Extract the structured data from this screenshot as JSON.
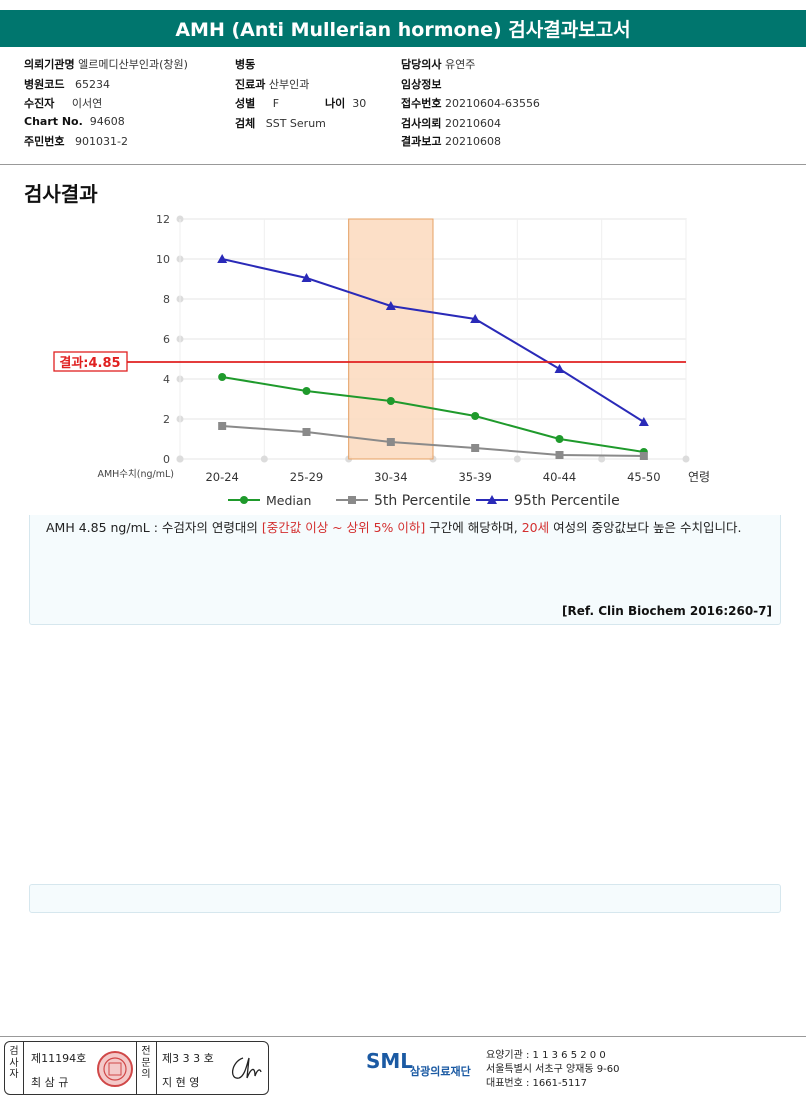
{
  "header": {
    "title": "AMH (Anti Mullerian hormone) 검사결과보고서"
  },
  "info": {
    "institution_label": "의뢰기관명",
    "institution": "엘르메디산부인과(창원)",
    "ward_label": "병동",
    "ward": "",
    "doctor_label": "담당의사",
    "doctor": "유연주",
    "hospital_code_label": "병원코드",
    "hospital_code": "65234",
    "dept_label": "진료과",
    "dept": "산부인과",
    "clinical_label": "임상정보",
    "clinical": "",
    "patient_label": "수진자",
    "patient": "이서연",
    "sex_label": "성별",
    "sex": "F",
    "age_label": "나이",
    "age": "30",
    "receipt_label": "접수번호",
    "receipt": "20210604-63556",
    "chart_label": "Chart No.",
    "chart": "94608",
    "specimen_label": "검체",
    "specimen": "SST Serum",
    "request_label": "검사의뢰",
    "request": "20210604",
    "id_label": "주민번호",
    "id": "901031-2",
    "report_label": "결과보고",
    "report": "20210608"
  },
  "section": {
    "title": "검사결과"
  },
  "chart_data": {
    "type": "line",
    "categories": [
      "20-24",
      "25-29",
      "30-34",
      "35-39",
      "40-44",
      "45-50"
    ],
    "xlabel": "연령",
    "ylabel": "AMH수치(ng/mL)",
    "ylim": [
      0,
      12
    ],
    "yticks": [
      0,
      2,
      4,
      6,
      8,
      10,
      12
    ],
    "highlight_category": "30-34",
    "result_line": {
      "value": 4.85,
      "label": "결과:4.85",
      "color": "#e02020"
    },
    "series": [
      {
        "name": "Median",
        "values": [
          4.1,
          3.4,
          2.9,
          2.15,
          1.0,
          0.35
        ],
        "color": "#1f9a2c",
        "marker": "circle"
      },
      {
        "name": "5th Percentile",
        "values": [
          1.65,
          1.35,
          0.85,
          0.55,
          0.2,
          0.15
        ],
        "color": "#8a8a8a",
        "marker": "square"
      },
      {
        "name": "95th Percentile",
        "values": [
          10.0,
          9.05,
          7.65,
          7.0,
          4.5,
          1.85
        ],
        "color": "#2a2ab8",
        "marker": "triangle"
      }
    ],
    "legend_position": "bottom",
    "grid": true
  },
  "description": {
    "p1": "AMH  4.85 ng/mL : 수검자의 연령대의 ",
    "p2": "[중간값 이상 ~ 상위 5% 이하]",
    "p3": "  구간에 해당하며, ",
    "p4": "20세",
    "p5": " 여성의 중앙값보다 높은 수치입니다."
  },
  "reference": "[Ref. Clin Biochem 2016:260-7]",
  "footer": {
    "inspector_label": "검사자",
    "inspector_no": "제11194호",
    "inspector_name": "최 삼 규",
    "physician_label": "전문의",
    "physician_no": "제3 3 3 호",
    "physician_name": "지 현 영",
    "logo_text": "SML",
    "org_name": "삼광의료재단",
    "line1": "요양기관 : 1 1 3 6 5 2 0 0",
    "line2": "서울특별시 서초구 양재동 9-60",
    "line3": "대표번호 : 1661-5117"
  }
}
